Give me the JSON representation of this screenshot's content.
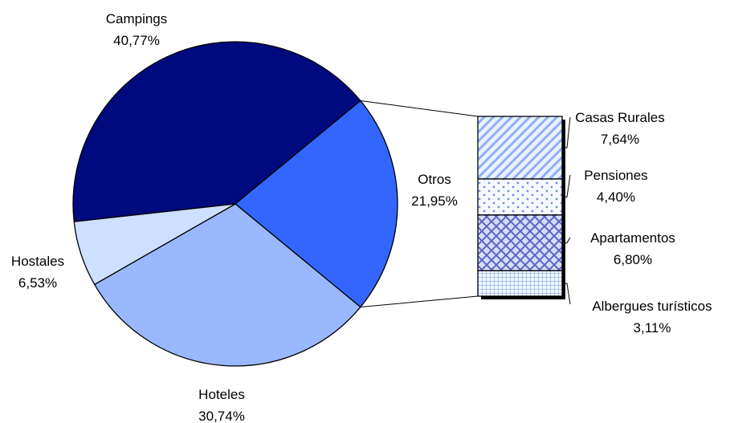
{
  "chart_data": {
    "type": "pie",
    "title": "",
    "slices": [
      {
        "label": "Campings",
        "value_text": "40,77%",
        "value": 40.77,
        "color": "#000A7F"
      },
      {
        "label": "Otros",
        "value_text": "21,95%",
        "value": 21.95,
        "color": "#3366FF"
      },
      {
        "label": "Hoteles",
        "value_text": "30,74%",
        "value": 30.74,
        "color": "#99B8FF"
      },
      {
        "label": "Hostales",
        "value_text": "6,53%",
        "value": 6.53,
        "color": "#CCE0FF"
      }
    ],
    "breakdown": {
      "of": "Otros",
      "type": "stacked-bar",
      "items": [
        {
          "label": "Casas Rurales",
          "value_text": "7,64%",
          "value": 7.64,
          "pattern": "diagonal-stripes"
        },
        {
          "label": "Pensiones",
          "value_text": "4,40%",
          "value": 4.4,
          "pattern": "dots"
        },
        {
          "label": "Apartamentos",
          "value_text": "6,80%",
          "value": 6.8,
          "pattern": "crosshatch"
        },
        {
          "label": "Albergues turísticos",
          "value_text": "3,11%",
          "value": 3.11,
          "pattern": "grid"
        }
      ]
    }
  }
}
